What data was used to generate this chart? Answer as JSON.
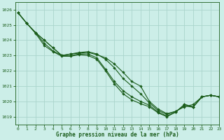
{
  "title": "Graphe pression niveau de la mer (hPa)",
  "bg_color": "#cceee8",
  "grid_color": "#aad4cc",
  "line_color": "#1a5c1a",
  "xlim": [
    -0.3,
    23
  ],
  "ylim": [
    1018.5,
    1026.5
  ],
  "yticks": [
    1019,
    1020,
    1021,
    1022,
    1023,
    1024,
    1025,
    1026
  ],
  "xticks": [
    0,
    1,
    2,
    3,
    4,
    5,
    6,
    7,
    8,
    9,
    10,
    11,
    12,
    13,
    14,
    15,
    16,
    17,
    18,
    19,
    20,
    21,
    22,
    23
  ],
  "series": [
    [
      1025.8,
      1025.1,
      1024.5,
      1024.0,
      1023.5,
      1023.0,
      1023.1,
      1023.15,
      1023.2,
      1023.05,
      1022.85,
      1022.45,
      1021.9,
      1021.3,
      1021.0,
      1020.0,
      1019.5,
      1019.2,
      1019.35,
      1019.65,
      1019.8,
      1020.3,
      1020.4,
      1020.3
    ],
    [
      1025.8,
      1025.1,
      1024.5,
      1024.0,
      1023.5,
      1023.0,
      1023.1,
      1023.2,
      1023.25,
      1023.1,
      1022.75,
      1022.2,
      1021.5,
      1021.0,
      1020.5,
      1019.9,
      1019.4,
      1019.15,
      1019.35,
      1019.7,
      1019.62,
      1020.3,
      1020.4,
      1020.3
    ],
    [
      1025.8,
      1025.1,
      1024.5,
      1023.8,
      1023.3,
      1023.0,
      1023.0,
      1023.1,
      1023.1,
      1022.85,
      1022.1,
      1021.3,
      1020.7,
      1020.3,
      1020.0,
      1019.75,
      1019.3,
      1019.05,
      1019.3,
      1019.8,
      1019.65,
      1020.3,
      1020.4,
      1020.3
    ],
    [
      1025.8,
      1025.1,
      1024.45,
      1023.65,
      1023.25,
      1022.95,
      1022.95,
      1023.05,
      1023.0,
      1022.75,
      1022.0,
      1021.15,
      1020.5,
      1020.1,
      1019.85,
      1019.65,
      1019.25,
      1019.0,
      1019.3,
      1019.8,
      1019.65,
      1020.3,
      1020.4,
      1020.3
    ]
  ],
  "marker_x_series": [
    [
      0,
      1,
      2,
      3,
      4,
      5,
      6,
      7,
      8,
      9,
      10,
      11,
      12,
      13,
      14,
      15,
      16,
      17,
      18,
      19,
      20,
      21,
      22,
      23
    ],
    [
      5,
      6,
      7,
      8,
      9,
      10,
      11,
      12,
      13,
      14,
      15,
      16,
      17,
      18,
      19,
      20,
      21,
      22,
      23
    ],
    [
      5,
      6,
      7,
      8,
      9,
      10,
      11,
      12,
      13,
      14,
      15,
      16,
      17,
      18,
      19,
      20,
      21,
      22,
      23
    ],
    [
      3,
      4,
      5,
      6,
      7,
      8,
      9,
      10,
      11,
      12,
      13,
      14,
      15,
      16,
      17,
      18,
      19,
      20,
      21,
      22,
      23
    ]
  ]
}
